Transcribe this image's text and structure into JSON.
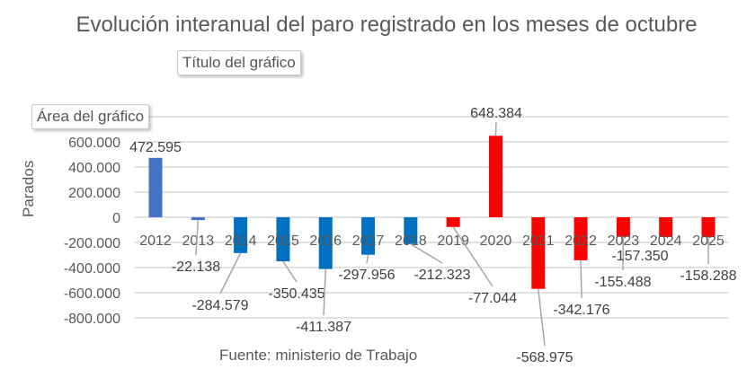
{
  "chart_data": {
    "type": "bar",
    "title": "Evolución interanual del paro registrado en los meses de octubre",
    "ylabel": "Parados",
    "xlabel": "",
    "source": "Fuente: ministerio de Trabajo",
    "categories": [
      "2012",
      "2013",
      "2014",
      "2015",
      "2016",
      "2017",
      "2018",
      "2019",
      "2020",
      "2021",
      "2022",
      "2023",
      "2024",
      "2025"
    ],
    "values": [
      472595,
      -22138,
      -284579,
      -350435,
      -411387,
      -297956,
      -212323,
      -77044,
      648384,
      -568975,
      -342176,
      -155488,
      -157350,
      -158288
    ],
    "data_labels": [
      "472.595",
      "-22.138",
      "-284.579",
      "-350.435",
      "-411.387",
      "-297.956",
      "-212.323",
      "-77.044",
      "648.384",
      "-568.975",
      "-342.176",
      "-155.488",
      "-157.350",
      "-158.288"
    ],
    "colors": [
      "#4472C4",
      "#4472C4",
      "#0070C0",
      "#0070C0",
      "#0070C0",
      "#0070C0",
      "#0070C0",
      "#FF0000",
      "#FF0000",
      "#FF0000",
      "#FF0000",
      "#FF0000",
      "#FF0000",
      "#FF0000"
    ],
    "ylim": [
      -800000,
      800000
    ],
    "yticks": [
      -800000,
      -600000,
      -400000,
      -200000,
      0,
      200000,
      400000,
      600000,
      800000
    ],
    "ytick_labels": [
      "-800.000",
      "-600.000",
      "-400.000",
      "-200.000",
      "0",
      "200.000",
      "400.000",
      "600.000",
      ""
    ],
    "grid": true,
    "legend": "none"
  },
  "tooltips": {
    "chart_title": "Título del gráfico",
    "chart_area": "Área del gráfico"
  }
}
